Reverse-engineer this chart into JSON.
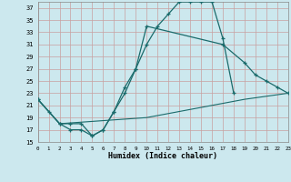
{
  "xlabel": "Humidex (Indice chaleur)",
  "bg_color": "#cce8ee",
  "line_color": "#1a6b6b",
  "xlim": [
    0,
    23
  ],
  "ylim": [
    15,
    38
  ],
  "yticks": [
    15,
    17,
    19,
    21,
    23,
    25,
    27,
    29,
    31,
    33,
    35,
    37
  ],
  "xticks": [
    0,
    1,
    2,
    3,
    4,
    5,
    6,
    7,
    8,
    9,
    10,
    11,
    12,
    13,
    14,
    15,
    16,
    17,
    18,
    19,
    20,
    21,
    22,
    23
  ],
  "series1_x": [
    0,
    1,
    2,
    3,
    4,
    5,
    6,
    7,
    8,
    9,
    10,
    11,
    12,
    13,
    14,
    15,
    16,
    17,
    18
  ],
  "series1_y": [
    22,
    20,
    18,
    17,
    17,
    16,
    17,
    20,
    24,
    27,
    31,
    34,
    36,
    38,
    38,
    38,
    38,
    32,
    23
  ],
  "series2_x": [
    0,
    2,
    3,
    4,
    5,
    6,
    7,
    8,
    9,
    10,
    17,
    19,
    20,
    21,
    22,
    23
  ],
  "series2_y": [
    22,
    18,
    18,
    18,
    16,
    17,
    20,
    23,
    27,
    34,
    31,
    28,
    26,
    25,
    24,
    23
  ],
  "series3_x": [
    0,
    2,
    10,
    19,
    23
  ],
  "series3_y": [
    22,
    18,
    19,
    22,
    23
  ]
}
